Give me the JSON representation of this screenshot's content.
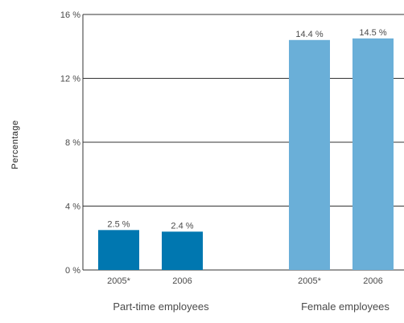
{
  "chart_data": {
    "type": "bar",
    "ylabel": "Percentage",
    "ylim": [
      0,
      16
    ],
    "yticks": [
      {
        "value": 0,
        "label": "0 %"
      },
      {
        "value": 4,
        "label": "4 %"
      },
      {
        "value": 8,
        "label": "8 %"
      },
      {
        "value": 12,
        "label": "12 %"
      },
      {
        "value": 16,
        "label": "16 %"
      }
    ],
    "grid": true,
    "groups": [
      {
        "name": "Part-time employees",
        "color": "#0077b0",
        "bars": [
          {
            "category": "2005*",
            "value": 2.5,
            "label": "2.5 %"
          },
          {
            "category": "2006",
            "value": 2.4,
            "label": "2.4 %"
          }
        ]
      },
      {
        "name": "Female employees",
        "color": "#6aafd8",
        "bars": [
          {
            "category": "2005*",
            "value": 14.4,
            "label": "14.4 %"
          },
          {
            "category": "2006",
            "value": 14.5,
            "label": "14.5 %"
          }
        ]
      }
    ]
  }
}
